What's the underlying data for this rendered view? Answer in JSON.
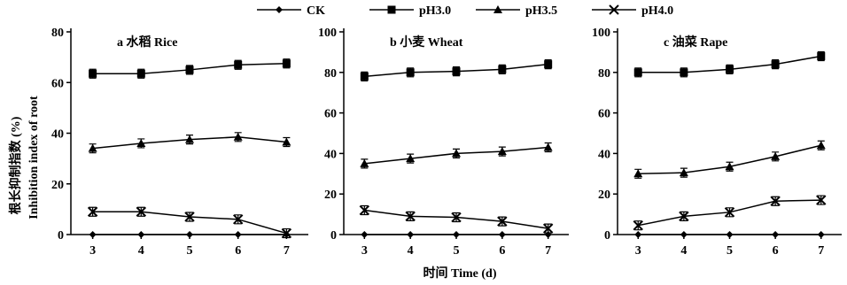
{
  "legend": [
    "CK",
    "pH3.0",
    "pH3.5",
    "pH4.0"
  ],
  "xlabel": "时间 Time (d)",
  "ylabel_cn": "根长抑制指数 (%)",
  "ylabel_en": "Inhibition index of root",
  "chart_data": [
    {
      "type": "line",
      "title": "a  水稻 Rice",
      "x": [
        3,
        4,
        5,
        6,
        7
      ],
      "ylim": [
        0,
        80
      ],
      "yticks": [
        0,
        20,
        40,
        60,
        80
      ],
      "series": [
        {
          "name": "CK",
          "marker": "diamond",
          "values": [
            0,
            0,
            0,
            0,
            0
          ]
        },
        {
          "name": "pH3.0",
          "marker": "square",
          "values": [
            63.5,
            63.5,
            65,
            67,
            67.5
          ]
        },
        {
          "name": "pH3.5",
          "marker": "triangle",
          "values": [
            34,
            36,
            37.5,
            38.5,
            36.5
          ]
        },
        {
          "name": "pH4.0",
          "marker": "cross",
          "values": [
            9,
            9,
            7,
            6,
            0.5
          ]
        }
      ]
    },
    {
      "type": "line",
      "title": "b  小麦 Wheat",
      "x": [
        3,
        4,
        5,
        6,
        7
      ],
      "ylim": [
        0,
        100
      ],
      "yticks": [
        0,
        20,
        40,
        60,
        80,
        100
      ],
      "series": [
        {
          "name": "CK",
          "marker": "diamond",
          "values": [
            0,
            0,
            0,
            0,
            0
          ]
        },
        {
          "name": "pH3.0",
          "marker": "square",
          "values": [
            78,
            80,
            80.5,
            81.5,
            84
          ]
        },
        {
          "name": "pH3.5",
          "marker": "triangle",
          "values": [
            35,
            37.5,
            40,
            41,
            43
          ]
        },
        {
          "name": "pH4.0",
          "marker": "cross",
          "values": [
            12,
            9,
            8.5,
            6.5,
            3
          ]
        }
      ]
    },
    {
      "type": "line",
      "title": "c  油菜 Rape",
      "x": [
        3,
        4,
        5,
        6,
        7
      ],
      "ylim": [
        0,
        100
      ],
      "yticks": [
        0,
        20,
        40,
        60,
        80,
        100
      ],
      "series": [
        {
          "name": "CK",
          "marker": "diamond",
          "values": [
            0,
            0,
            0,
            0,
            0
          ]
        },
        {
          "name": "pH3.0",
          "marker": "square",
          "values": [
            80,
            80,
            81.5,
            84,
            88
          ]
        },
        {
          "name": "pH3.5",
          "marker": "triangle",
          "values": [
            30,
            30.5,
            33.5,
            38.5,
            44
          ]
        },
        {
          "name": "pH4.0",
          "marker": "cross",
          "values": [
            4.5,
            9,
            11,
            16.5,
            17
          ]
        }
      ]
    }
  ]
}
